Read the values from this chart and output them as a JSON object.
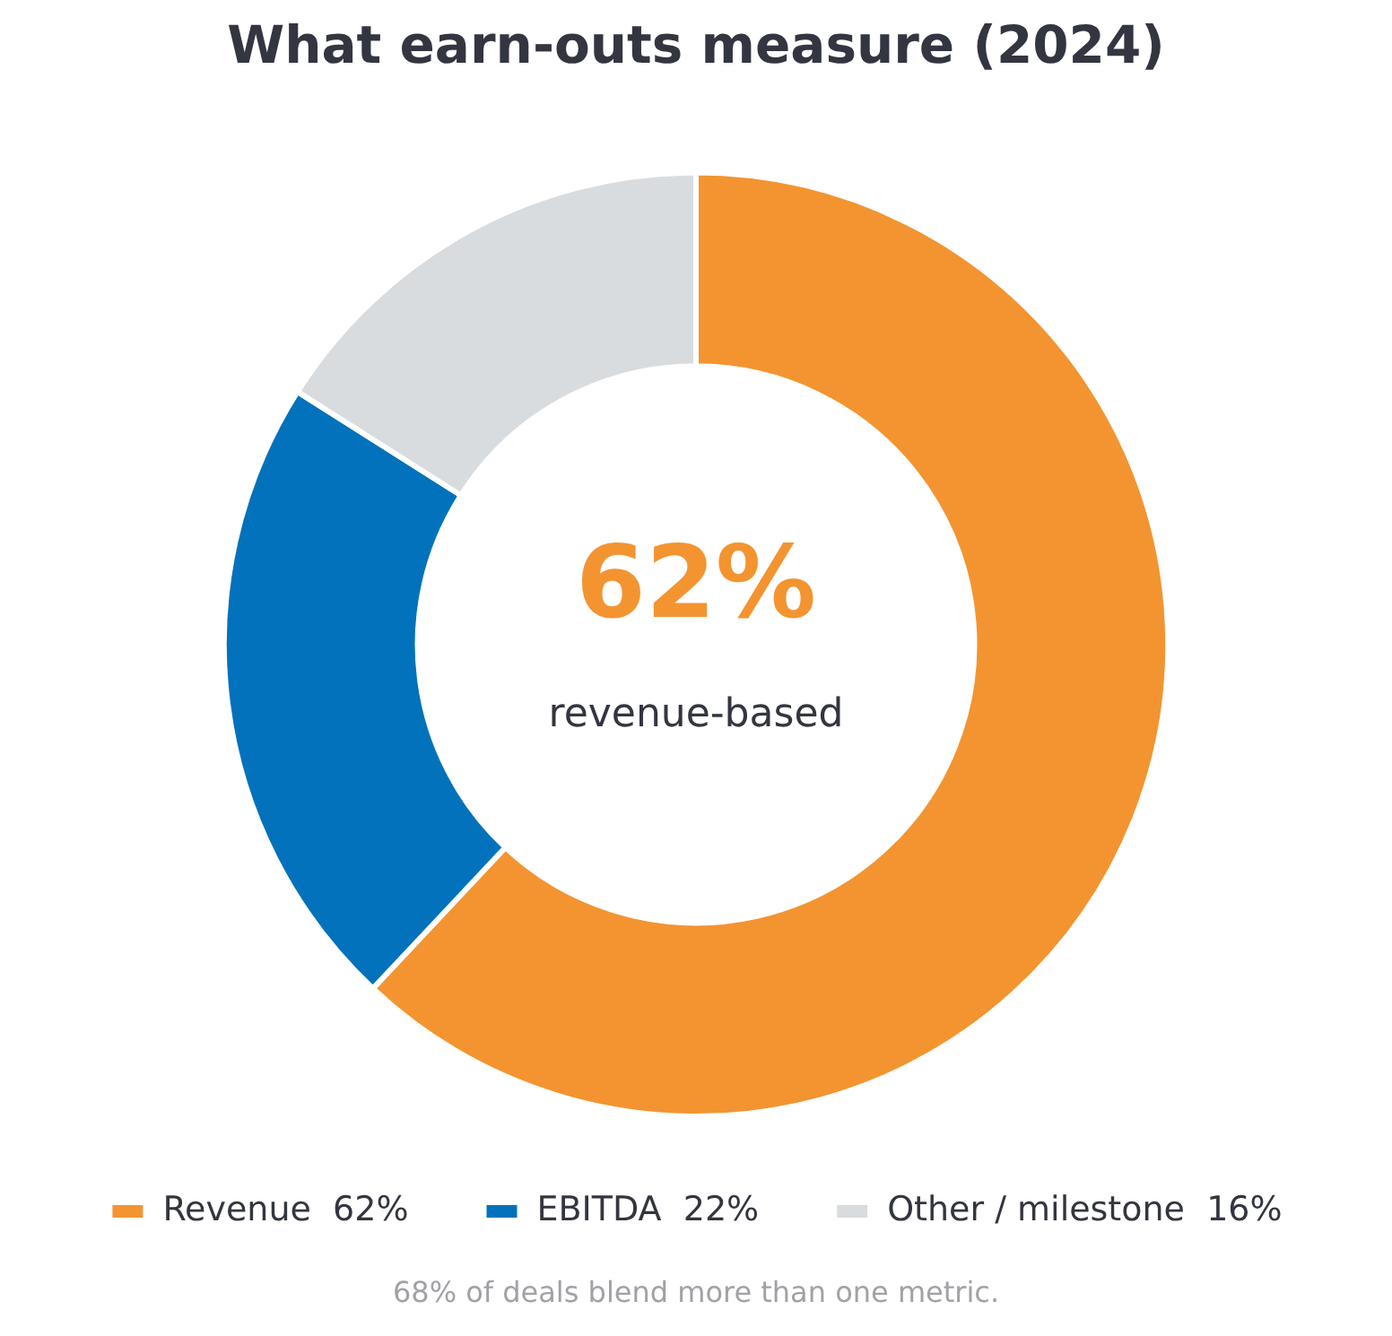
{
  "chart_data": {
    "type": "donut",
    "title": "What earn-outs measure (2024)",
    "categories": [
      "Revenue  62%",
      "EBITDA  22%",
      "Other / milestone  16%"
    ],
    "values": [
      62,
      22,
      16
    ],
    "colors": [
      "#f39431",
      "#0172bb",
      "#d9dcdf"
    ],
    "legend": "bottom",
    "annotations": [
      "62%",
      "revenue-based",
      "68% of deals blend more than one metric."
    ]
  }
}
